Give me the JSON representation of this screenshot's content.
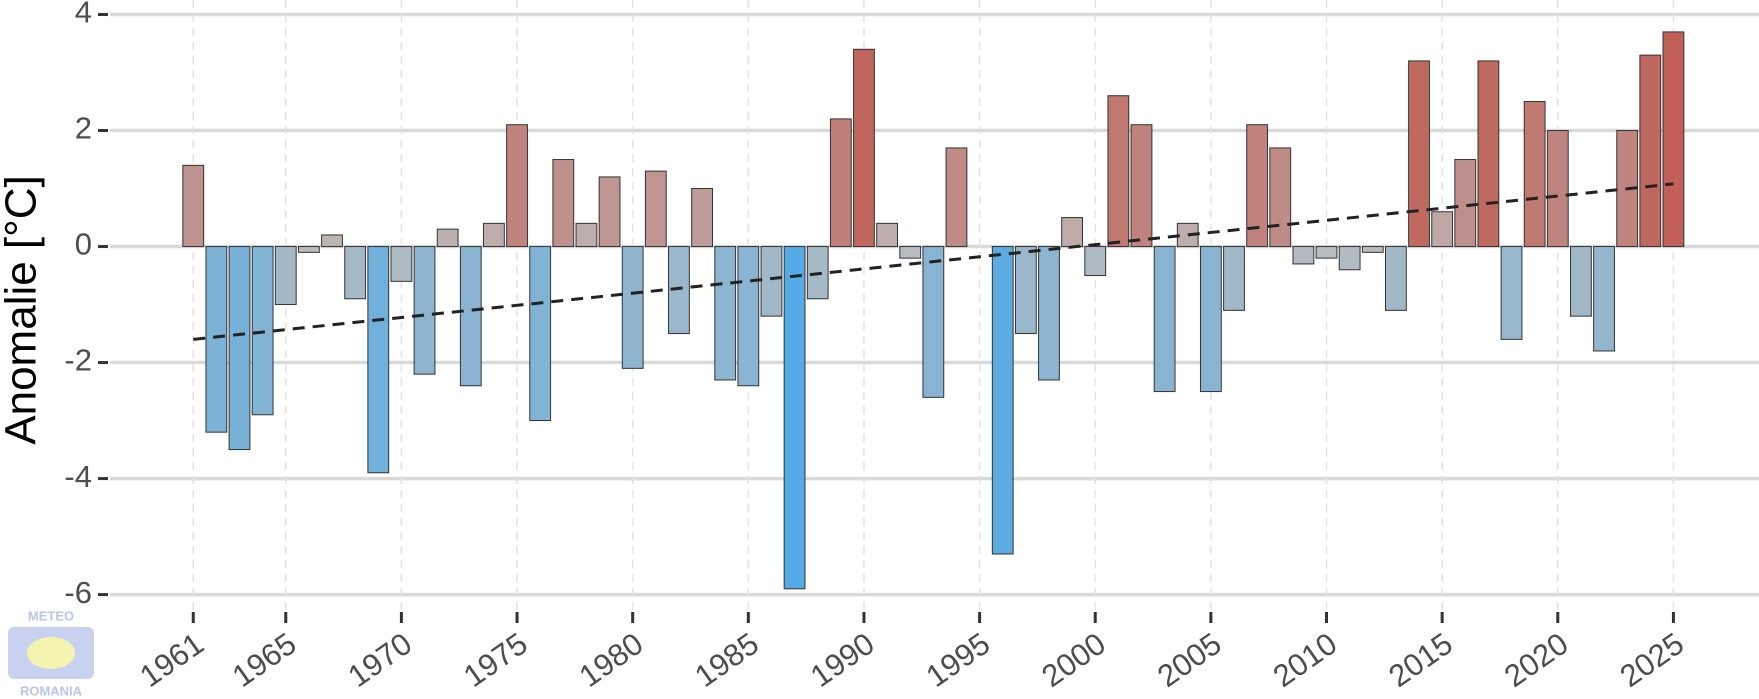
{
  "chart_data": {
    "type": "bar",
    "y_label": "Anomalie [°C]",
    "logo": [
      "METEO",
      "ROMANIA"
    ],
    "x": [
      1961,
      1962,
      1963,
      1964,
      1965,
      1966,
      1967,
      1968,
      1969,
      1970,
      1971,
      1972,
      1973,
      1974,
      1975,
      1976,
      1977,
      1978,
      1979,
      1980,
      1981,
      1982,
      1983,
      1984,
      1985,
      1986,
      1987,
      1988,
      1989,
      1990,
      1991,
      1992,
      1993,
      1994,
      1995,
      1996,
      1997,
      1998,
      1999,
      2000,
      2001,
      2002,
      2003,
      2004,
      2005,
      2006,
      2007,
      2008,
      2009,
      2010,
      2011,
      2012,
      2013,
      2014,
      2015,
      2016,
      2017,
      2018,
      2019,
      2020,
      2021,
      2022,
      2023,
      2024,
      2025
    ],
    "values": [
      1.4,
      -3.2,
      -3.5,
      -2.9,
      -1.0,
      -0.1,
      0.2,
      -0.9,
      -3.9,
      -0.6,
      -2.2,
      0.3,
      -2.4,
      0.4,
      2.1,
      -3.0,
      1.5,
      0.4,
      1.2,
      -2.1,
      1.3,
      -1.5,
      1.0,
      -2.3,
      -2.4,
      -1.2,
      -5.9,
      -0.9,
      2.2,
      3.4,
      0.4,
      -0.2,
      -2.6,
      1.7,
      0.0,
      -5.3,
      -1.5,
      -2.3,
      0.5,
      -0.5,
      2.6,
      2.1,
      -2.5,
      0.4,
      -2.5,
      -1.1,
      2.1,
      1.7,
      -0.3,
      -0.2,
      -0.4,
      -0.1,
      -1.1,
      3.2,
      0.6,
      1.5,
      3.2,
      -1.6,
      2.5,
      2.0,
      -1.2,
      -1.8,
      2.0,
      3.3,
      3.7
    ],
    "color_scale": {
      "negative": "#4eaae8",
      "zero": "#bdbdbd",
      "positive": "#c0554a"
    },
    "trend": {
      "x": [
        1961,
        2025
      ],
      "values": [
        -1.6,
        1.08
      ],
      "color": "#222222"
    },
    "xlim": [
      1957.4,
      2028.7
    ],
    "xticks": [
      1961,
      1965,
      1970,
      1975,
      1980,
      1985,
      1990,
      1995,
      2000,
      2005,
      2010,
      2015,
      2020,
      2025
    ],
    "ylim": [
      -6.3,
      4.25
    ],
    "yticks": [
      -6,
      -4,
      -2,
      0,
      2,
      4
    ],
    "grid": true
  }
}
